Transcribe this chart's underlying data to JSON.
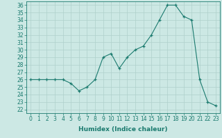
{
  "x": [
    0,
    1,
    2,
    3,
    4,
    5,
    6,
    7,
    8,
    9,
    10,
    11,
    12,
    13,
    14,
    15,
    16,
    17,
    18,
    19,
    20,
    21,
    22,
    23
  ],
  "y": [
    26,
    26,
    26,
    26,
    26,
    25.5,
    24.5,
    25,
    26,
    29,
    29.5,
    27.5,
    29,
    30,
    30.5,
    32,
    34,
    36,
    36,
    34.5,
    34,
    26,
    23,
    22.5
  ],
  "xlabel": "Humidex (Indice chaleur)",
  "xlim": [
    -0.5,
    23.5
  ],
  "ylim": [
    21.5,
    36.5
  ],
  "yticks": [
    22,
    23,
    24,
    25,
    26,
    27,
    28,
    29,
    30,
    31,
    32,
    33,
    34,
    35,
    36
  ],
  "xticks": [
    0,
    1,
    2,
    3,
    4,
    5,
    6,
    7,
    8,
    9,
    10,
    11,
    12,
    13,
    14,
    15,
    16,
    17,
    18,
    19,
    20,
    21,
    22,
    23
  ],
  "line_color": "#1a7a6e",
  "bg_color": "#cce8e4",
  "grid_color": "#afd0cb",
  "label_fontsize": 6.5,
  "tick_fontsize": 5.5
}
